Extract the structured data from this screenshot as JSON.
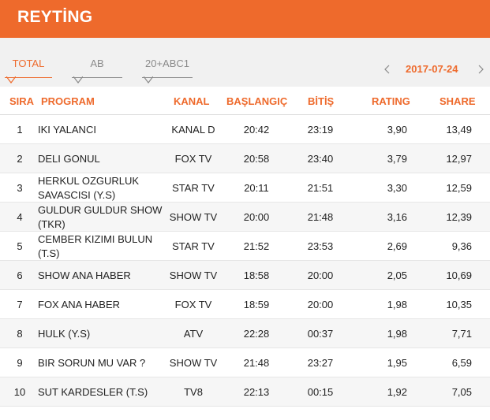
{
  "header": {
    "title": "REYTİNG"
  },
  "tabs": [
    {
      "label": "TOTAL",
      "active": true
    },
    {
      "label": "AB",
      "active": false
    },
    {
      "label": "20+ABC1",
      "active": false
    }
  ],
  "date_nav": {
    "date": "2017-07-24",
    "prev_icon": "chevron-left-icon",
    "next_icon": "chevron-right-icon"
  },
  "colors": {
    "accent": "#ee6a2c",
    "tabbar_bg": "#f1f1f1",
    "alt_row": "#f6f6f6"
  },
  "table": {
    "columns": [
      "SIRA",
      "PROGRAM",
      "KANAL",
      "BAŞLANGIÇ",
      "BİTİŞ",
      "RATING",
      "SHARE"
    ],
    "rows": [
      {
        "rank": "1",
        "program": "IKI YALANCI",
        "kanal": "KANAL D",
        "start": "20:42",
        "end": "23:19",
        "rating": "3,90",
        "share": "13,49"
      },
      {
        "rank": "2",
        "program": "DELI GONUL",
        "kanal": "FOX TV",
        "start": "20:58",
        "end": "23:40",
        "rating": "3,79",
        "share": "12,97"
      },
      {
        "rank": "3",
        "program": "HERKUL OZGURLUK SAVASCISI (Y.S)",
        "kanal": "STAR TV",
        "start": "20:11",
        "end": "21:51",
        "rating": "3,30",
        "share": "12,59"
      },
      {
        "rank": "4",
        "program": "GULDUR GULDUR SHOW (TKR)",
        "kanal": "SHOW TV",
        "start": "20:00",
        "end": "21:48",
        "rating": "3,16",
        "share": "12,39"
      },
      {
        "rank": "5",
        "program": "CEMBER KIZIMI BULUN (T.S)",
        "kanal": "STAR TV",
        "start": "21:52",
        "end": "23:53",
        "rating": "2,69",
        "share": "9,36"
      },
      {
        "rank": "6",
        "program": "SHOW ANA HABER",
        "kanal": "SHOW TV",
        "start": "18:58",
        "end": "20:00",
        "rating": "2,05",
        "share": "10,69"
      },
      {
        "rank": "7",
        "program": "FOX ANA HABER",
        "kanal": "FOX TV",
        "start": "18:59",
        "end": "20:00",
        "rating": "1,98",
        "share": "10,35"
      },
      {
        "rank": "8",
        "program": "HULK (Y.S)",
        "kanal": "ATV",
        "start": "22:28",
        "end": "00:37",
        "rating": "1,98",
        "share": "7,71"
      },
      {
        "rank": "9",
        "program": "BIR SORUN MU VAR ?",
        "kanal": "SHOW TV",
        "start": "21:48",
        "end": "23:27",
        "rating": "1,95",
        "share": "6,59"
      },
      {
        "rank": "10",
        "program": "SUT KARDESLER (T.S)",
        "kanal": "TV8",
        "start": "22:13",
        "end": "00:15",
        "rating": "1,92",
        "share": "7,05"
      }
    ]
  }
}
